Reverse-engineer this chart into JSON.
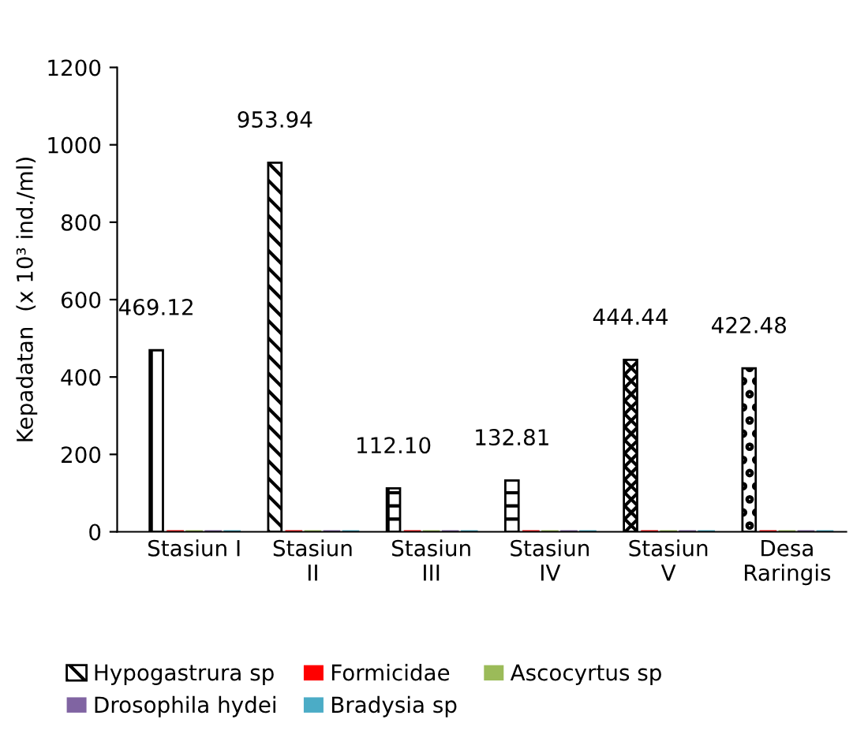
{
  "chart_data": {
    "type": "bar",
    "ylabel": "Kepadatan  (x 10³ ind./ml)",
    "categories": [
      "Stasiun I",
      "Stasiun\nII",
      "Stasiun\nIII",
      "Stasiun\nIV",
      "Stasiun\nV",
      "Desa\nRaringis"
    ],
    "series": [
      {
        "name": "Hypogastrura sp",
        "color": "#000000",
        "values": [
          469.12,
          953.94,
          112.1,
          132.81,
          444.44,
          422.48
        ],
        "value_labels": [
          "469.12",
          "953.94",
          "112.10",
          "132.81",
          "444.44",
          "422.48"
        ]
      },
      {
        "name": "Formicidae",
        "color": "#ff0000",
        "values": [
          0,
          0,
          0,
          0,
          0,
          0
        ]
      },
      {
        "name": "Ascocyrtus sp",
        "color": "#9bbb59",
        "values": [
          0,
          0,
          0,
          0,
          0,
          0
        ]
      },
      {
        "name": "Drosophila hydei",
        "color": "#8064a2",
        "values": [
          0,
          0,
          0,
          0,
          0,
          0
        ]
      },
      {
        "name": "Bradysia sp",
        "color": "#4bacc6",
        "values": [
          0,
          0,
          0,
          0,
          0,
          0
        ]
      }
    ],
    "ylim": [
      0,
      1200
    ],
    "yticks": [
      0,
      200,
      400,
      600,
      800,
      1000,
      1200
    ],
    "grid": false,
    "legend": "bottom"
  }
}
